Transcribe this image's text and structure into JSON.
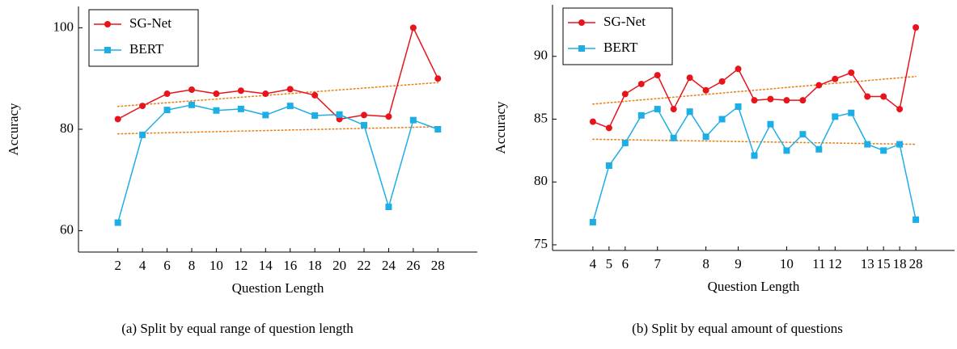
{
  "chart_data": [
    {
      "type": "line",
      "caption": "(a) Split by equal range of question length",
      "xlabel": "Question Length",
      "ylabel": "Accuracy",
      "x": [
        2,
        4,
        6,
        8,
        10,
        12,
        14,
        16,
        18,
        20,
        22,
        24,
        26,
        28
      ],
      "xlim": [
        -1.2,
        31.2
      ],
      "xticks": [
        2,
        4,
        6,
        8,
        10,
        12,
        14,
        16,
        18,
        20,
        22,
        24,
        26,
        28
      ],
      "ylim": [
        55.8,
        104.2
      ],
      "yticks": [
        60,
        80,
        100
      ],
      "legend": "upper left",
      "series": [
        {
          "name": "SG-Net",
          "color": "#e8141c",
          "marker": "circle",
          "values": [
            82.0,
            84.6,
            87.0,
            87.8,
            87.0,
            87.6,
            87.0,
            87.9,
            86.7,
            82.0,
            82.8,
            82.5,
            100,
            90
          ]
        },
        {
          "name": "BERT",
          "color": "#1eaee6",
          "marker": "square",
          "values": [
            61.6,
            78.9,
            83.8,
            84.8,
            83.7,
            84.0,
            82.8,
            84.6,
            82.7,
            82.9,
            80.8,
            64.7,
            81.8,
            80.0
          ]
        }
      ],
      "trend_lines": [
        {
          "color": "#e8821c",
          "values": [
            84.5,
            89.2
          ]
        },
        {
          "color": "#e8821c",
          "values": [
            79.1,
            80.5
          ]
        }
      ]
    },
    {
      "type": "line",
      "caption": "(b) Split by equal amount of questions",
      "xlabel": "Question Length",
      "ylabel": "Accuracy",
      "categories": [
        "4",
        "5",
        "6",
        null,
        "7",
        null,
        null,
        "8",
        null,
        "9",
        null,
        null,
        "10",
        null,
        "11",
        "12",
        null,
        "13",
        "15",
        "18",
        "28"
      ],
      "xlim": [
        -2.5,
        22.4
      ],
      "ylim": [
        74.55,
        94.1
      ],
      "yticks": [
        75,
        80,
        85,
        90
      ],
      "legend": "upper left",
      "series": [
        {
          "name": "SG-Net",
          "color": "#e8141c",
          "marker": "circle",
          "values": [
            84.8,
            84.3,
            87.0,
            87.8,
            88.5,
            85.8,
            88.3,
            87.3,
            88.0,
            89.0,
            86.5,
            86.6,
            86.5,
            86.5,
            87.7,
            88.2,
            88.7,
            86.8,
            86.8,
            85.8,
            92.3
          ]
        },
        {
          "name": "BERT",
          "color": "#1eaee6",
          "marker": "square",
          "values": [
            76.8,
            81.3,
            83.1,
            85.3,
            85.8,
            83.5,
            85.6,
            83.6,
            85.0,
            86.0,
            82.1,
            84.6,
            82.5,
            83.8,
            82.6,
            85.2,
            85.5,
            83.0,
            82.5,
            83.0,
            77.0
          ]
        }
      ],
      "trend_lines": [
        {
          "color": "#e8821c",
          "values": [
            86.2,
            88.4
          ]
        },
        {
          "color": "#e8821c",
          "values": [
            83.4,
            83.0
          ]
        }
      ]
    }
  ]
}
